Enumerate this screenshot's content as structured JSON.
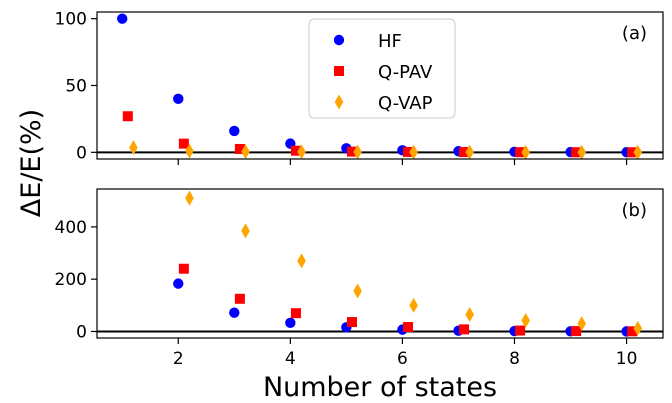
{
  "chart_data": {
    "type": "scatter",
    "xlabel": "Number of states",
    "ylabel": "ΔE/E(%)",
    "xlim": [
      0.55,
      10.65
    ],
    "xticks": [
      2,
      4,
      6,
      8,
      10
    ],
    "legend_position": "top-center",
    "legend": [
      {
        "name": "HF",
        "color": "#0000ff",
        "marker": "circle"
      },
      {
        "name": "Q-PAV",
        "color": "#ff0000",
        "marker": "square"
      },
      {
        "name": "Q-VAP",
        "color": "#ffa500",
        "marker": "diamond"
      }
    ],
    "panels": [
      {
        "label": "(a)",
        "ylim": [
          -5,
          105
        ],
        "yticks": [
          0,
          50,
          100
        ],
        "hline": 0,
        "series": [
          {
            "name": "HF",
            "x": [
              1,
              2,
              3,
              4,
              5,
              6,
              7,
              8,
              9,
              10
            ],
            "values": [
              100,
              40,
              16,
              6.5,
              3,
              1.5,
              0.8,
              0.4,
              0.2,
              0.1
            ]
          },
          {
            "name": "Q-PAV",
            "x": [
              1.1,
              2.1,
              3.1,
              4.1,
              5.1,
              6.1,
              7.1,
              8.1,
              9.1,
              10.1
            ],
            "values": [
              27,
              6.5,
              2.5,
              1.2,
              0.5,
              0.3,
              0.2,
              0.1,
              0.05,
              0.03
            ]
          },
          {
            "name": "Q-VAP",
            "x": [
              1.2,
              2.2,
              3.2,
              4.2,
              5.2,
              6.2,
              7.2,
              8.2,
              9.2,
              10.2
            ],
            "values": [
              3.5,
              1,
              0.5,
              0.3,
              0.2,
              0.1,
              0.1,
              0.05,
              0.03,
              0.02
            ]
          }
        ]
      },
      {
        "label": "(b)",
        "ylim": [
          -25,
          545
        ],
        "yticks": [
          0,
          200,
          400
        ],
        "hline": 0,
        "series": [
          {
            "name": "HF",
            "x": [
              2,
              3,
              4,
              5,
              6,
              7,
              8,
              9,
              10
            ],
            "values": [
              183,
              72,
              33,
              16,
              7,
              3,
              1.5,
              0.7,
              0.3
            ]
          },
          {
            "name": "Q-PAV",
            "x": [
              2.1,
              3.1,
              4.1,
              5.1,
              6.1,
              7.1,
              8.1,
              9.1,
              10.1
            ],
            "values": [
              240,
              125,
              70,
              36,
              17,
              8,
              3.5,
              1.5,
              0.6
            ]
          },
          {
            "name": "Q-VAP",
            "x": [
              2.2,
              3.2,
              4.2,
              5.2,
              6.2,
              7.2,
              8.2,
              9.2,
              10.2
            ],
            "values": [
              510,
              385,
              270,
              155,
              100,
              65,
              42,
              30,
              12
            ]
          }
        ]
      }
    ]
  }
}
